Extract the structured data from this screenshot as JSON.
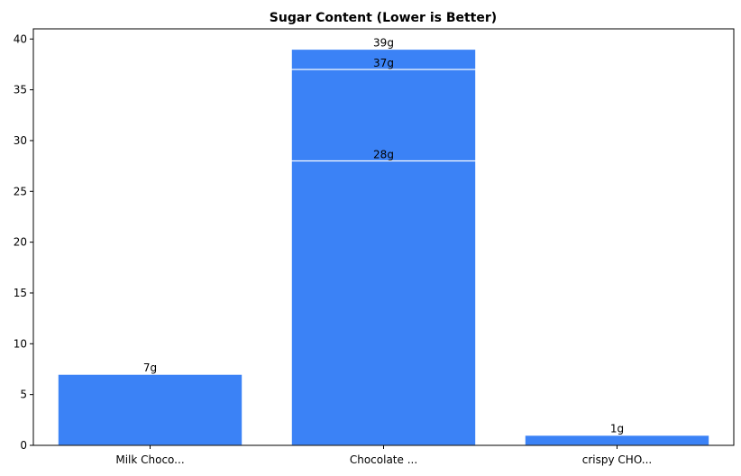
{
  "chart_data": {
    "type": "bar",
    "title": "Sugar Content (Lower is Better)",
    "xlabel": "",
    "ylabel": "",
    "ylim": [
      0,
      41
    ],
    "yticks": [
      0,
      5,
      10,
      15,
      20,
      25,
      30,
      35,
      40
    ],
    "grid": false,
    "categories": [
      "Milk Choco...",
      "Chocolate ...",
      "crispy CHO..."
    ],
    "bars": [
      {
        "category_index": 0,
        "value": 7,
        "label": "7g"
      },
      {
        "category_index": 1,
        "value": 39,
        "label": "39g"
      },
      {
        "category_index": 1,
        "value": 37,
        "label": "37g"
      },
      {
        "category_index": 1,
        "value": 28,
        "label": "28g"
      },
      {
        "category_index": 2,
        "value": 1,
        "label": "1g"
      }
    ],
    "colors": {
      "bar": "#3b82f6",
      "bar_edge": "#ffffff"
    }
  }
}
